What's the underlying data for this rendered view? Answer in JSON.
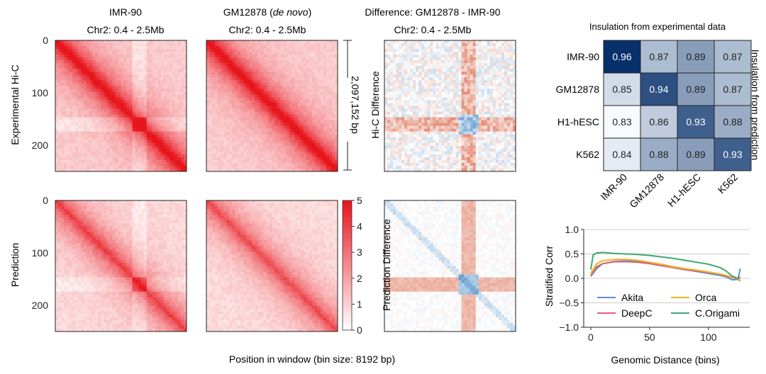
{
  "figure": {
    "xlabel_bottom": "Position in window (bin size: 8192 bp)"
  },
  "chart_data": [
    {
      "type": "heatmap",
      "panel": "hic-maps",
      "col_titles": [
        {
          "line1": "IMR-90",
          "line2": "Chr2: 0.4 - 2.5Mb"
        },
        {
          "line1": "GM12878 (de novo)",
          "line1_main": "GM12878 (",
          "line1_italic": "de novo",
          "line1_end": ")",
          "line2": "Chr2: 0.4 - 2.5Mb"
        },
        {
          "line1": "Difference: GM12878 - IMR-90",
          "line2": "Chr2: 0.4 - 2.5Mb"
        }
      ],
      "row_labels": [
        "Experimental Hi-C",
        "Prediction"
      ],
      "difference_labels": [
        "Hi-C Difference",
        "Prediction Difference"
      ],
      "y_ticks": [
        "0",
        "100",
        "200"
      ],
      "scale_label": "2,097,152 bp",
      "colorbar": {
        "ticks": [
          "0",
          "1",
          "2",
          "3",
          "4",
          "5"
        ],
        "min": 0,
        "max": 5,
        "colors": [
          "#ffffff",
          "#e8141c"
        ]
      },
      "stripe_center_bin": 160,
      "bins": 256
    },
    {
      "type": "heatmap",
      "panel": "insulation",
      "title": "Insulation from experimental data",
      "ylabel_right": "Insulation from prediction",
      "rows": [
        "IMR-90",
        "GM12878",
        "H1-hESC",
        "K562"
      ],
      "cols": [
        "IMR-90",
        "GM12878",
        "H1-hESC",
        "K562"
      ],
      "values": [
        [
          0.96,
          0.87,
          0.89,
          0.87
        ],
        [
          0.85,
          0.94,
          0.89,
          0.87
        ],
        [
          0.83,
          0.86,
          0.93,
          0.88
        ],
        [
          0.84,
          0.88,
          0.89,
          0.93
        ]
      ],
      "color_low": "#f7fbff",
      "color_high": "#08306b"
    },
    {
      "type": "line",
      "panel": "stratified-corr",
      "xlabel": "Genomic Distance (bins)",
      "ylabel": "Stratified Corr",
      "xlim": [
        -6,
        135
      ],
      "ylim": [
        -1.0,
        1.0
      ],
      "x_ticks": [
        0,
        50,
        100
      ],
      "y_ticks": [
        "1.0",
        "0.5",
        "0.0",
        "−0.5",
        "−1.0"
      ],
      "y_tick_values": [
        1.0,
        0.5,
        0.0,
        -0.5,
        -1.0
      ],
      "grid_y": [
        1.0,
        0.5,
        0.0,
        -0.5
      ],
      "legend_placement": "lower-center",
      "series": [
        {
          "name": "Akita",
          "color": "#5a8fdc",
          "x": [
            0,
            5,
            10,
            20,
            30,
            40,
            50,
            60,
            70,
            80,
            90,
            100,
            110,
            115,
            120,
            125,
            127
          ],
          "y": [
            0.04,
            0.2,
            0.3,
            0.35,
            0.36,
            0.35,
            0.31,
            0.27,
            0.22,
            0.18,
            0.14,
            0.1,
            0.06,
            0.03,
            -0.03,
            -0.02,
            0.2
          ]
        },
        {
          "name": "DeepC",
          "color": "#e2636a",
          "x": [
            0,
            5,
            10,
            20,
            30,
            40,
            50,
            60,
            70,
            80,
            90,
            100,
            110,
            115,
            120,
            125,
            127
          ],
          "y": [
            0.06,
            0.24,
            0.3,
            0.34,
            0.34,
            0.33,
            0.3,
            0.26,
            0.22,
            0.18,
            0.15,
            0.12,
            0.08,
            0.05,
            0.02,
            -0.02,
            -0.05
          ]
        },
        {
          "name": "Orca",
          "color": "#ebb62b",
          "x": [
            0,
            5,
            10,
            20,
            30,
            40,
            50,
            60,
            70,
            80,
            90,
            100,
            110,
            115,
            120,
            125,
            127
          ],
          "y": [
            0.1,
            0.3,
            0.36,
            0.39,
            0.39,
            0.37,
            0.33,
            0.29,
            0.24,
            0.2,
            0.17,
            0.13,
            0.09,
            0.06,
            0.03,
            0.0,
            -0.03
          ]
        },
        {
          "name": "C.Origami",
          "color": "#3fa86a",
          "x": [
            0,
            2,
            5,
            10,
            20,
            30,
            40,
            50,
            60,
            70,
            80,
            90,
            100,
            110,
            115,
            120,
            125,
            127
          ],
          "y": [
            0.18,
            0.48,
            0.52,
            0.53,
            0.51,
            0.5,
            0.49,
            0.47,
            0.44,
            0.41,
            0.37,
            0.33,
            0.29,
            0.22,
            0.15,
            0.05,
            0.0,
            0.03
          ]
        }
      ]
    }
  ]
}
